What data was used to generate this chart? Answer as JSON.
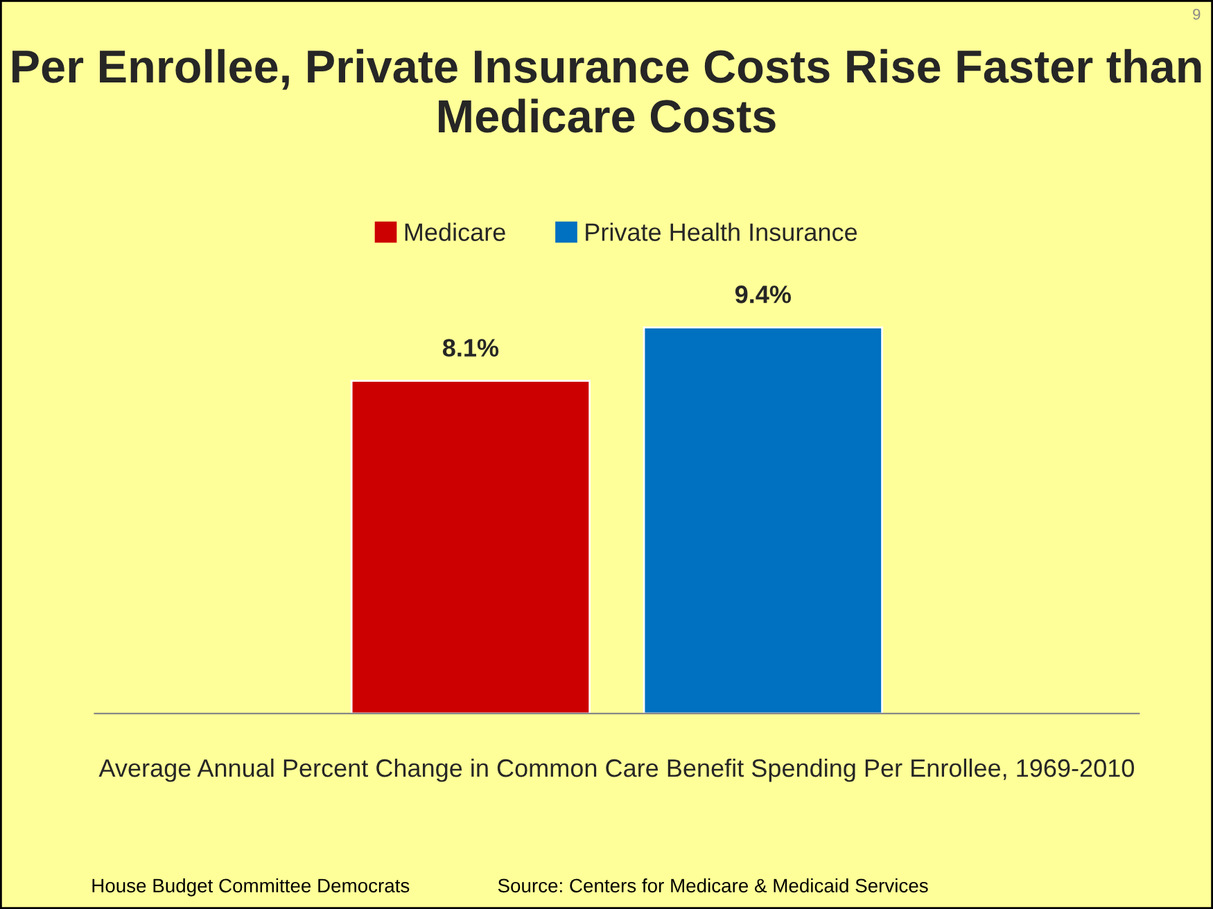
{
  "chart_data": {
    "type": "bar",
    "title": "Per Enrollee, Private Insurance Costs Rise Faster than Medicare Costs",
    "xlabel": "Average Annual Percent Change in Common Care Benefit Spending Per Enrollee, 1969-2010",
    "categories": [
      null
    ],
    "series": [
      {
        "name": "Medicare",
        "color": "#cc0000",
        "values": [
          8.1
        ],
        "value_labels": [
          "8.1%"
        ]
      },
      {
        "name": "Private Health Insurance",
        "color": "#0070c0",
        "values": [
          9.4
        ],
        "value_labels": [
          "9.4%"
        ]
      }
    ],
    "legend": "top",
    "grid": false,
    "annotations": [
      "9",
      "House Budget Committee Democrats",
      "Source: Centers for Medicare & Medicaid Services"
    ]
  }
}
